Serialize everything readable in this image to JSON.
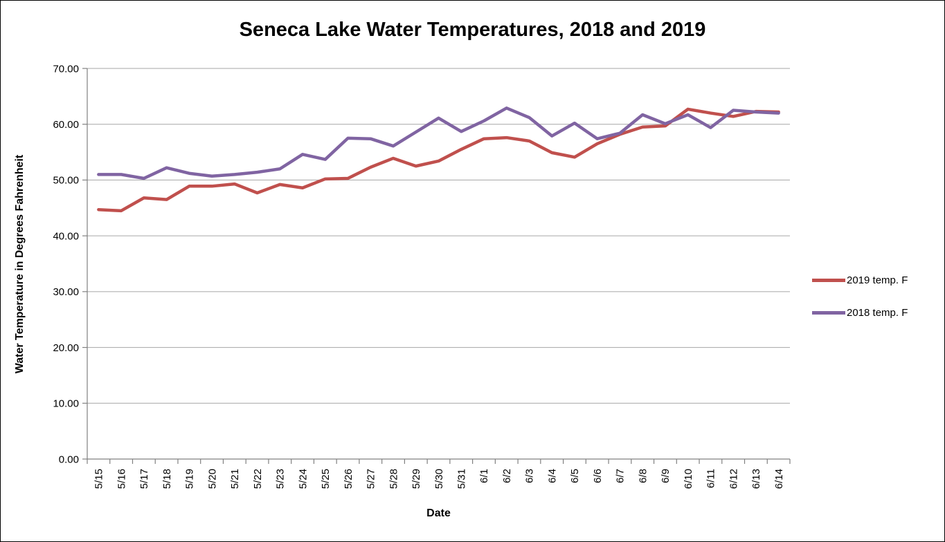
{
  "title": "Seneca Lake Water Temperatures, 2018 and 2019",
  "chart_data": {
    "type": "line",
    "title": "Seneca Lake Water Temperatures, 2018 and 2019",
    "xlabel": "Date",
    "ylabel": "Water Temperature in Degrees Fahrenheit",
    "ylim": [
      0,
      70
    ],
    "ytick_step": 10,
    "ytick_decimals": 2,
    "grid": "horizontal",
    "legend_position": "right",
    "x": [
      "5/15",
      "5/16",
      "5/17",
      "5/18",
      "5/19",
      "5/20",
      "5/21",
      "5/22",
      "5/23",
      "5/24",
      "5/25",
      "5/26",
      "5/27",
      "5/28",
      "5/29",
      "5/30",
      "5/31",
      "6/1",
      "6/2",
      "6/3",
      "6/4",
      "6/5",
      "6/6",
      "6/7",
      "6/8",
      "6/9",
      "6/10",
      "6/11",
      "6/12",
      "6/13",
      "6/14"
    ],
    "series": [
      {
        "name": "2019 temp. F",
        "color": "#C0504D",
        "values": [
          44.7,
          44.5,
          46.8,
          46.5,
          48.9,
          48.9,
          49.3,
          47.7,
          49.2,
          48.6,
          50.2,
          50.3,
          52.3,
          53.9,
          52.5,
          53.4,
          55.5,
          57.4,
          57.6,
          57.0,
          54.9,
          54.1,
          56.5,
          58.2,
          59.5,
          59.7,
          62.7,
          62.0,
          61.4,
          62.3,
          62.2
        ]
      },
      {
        "name": "2018 temp. F",
        "color": "#8064A2",
        "values": [
          51.0,
          51.0,
          50.3,
          52.2,
          51.2,
          50.7,
          51.0,
          51.4,
          52.0,
          54.6,
          53.7,
          57.5,
          57.4,
          56.1,
          58.6,
          61.1,
          58.7,
          60.6,
          62.9,
          61.2,
          57.9,
          60.2,
          57.4,
          58.4,
          61.7,
          60.1,
          61.7,
          59.4,
          62.5,
          62.2,
          62.0
        ]
      }
    ],
    "colors": {
      "gridline": "#A6A6A6",
      "axis": "#808080",
      "text": "#000000",
      "background": "#FFFFFF"
    }
  }
}
